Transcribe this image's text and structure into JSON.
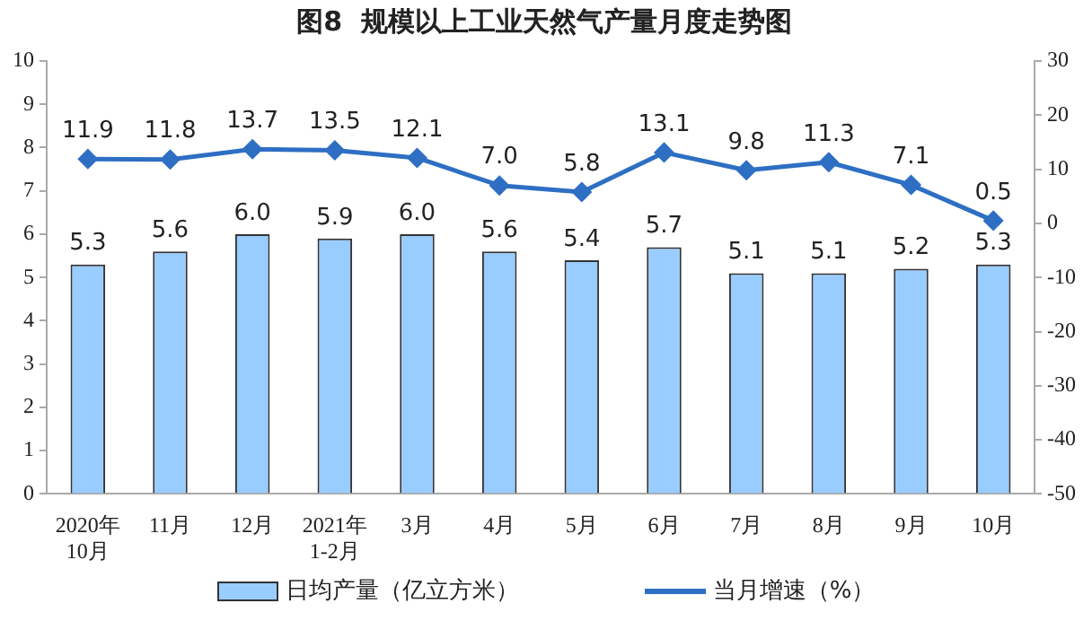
{
  "chart_data": {
    "type": "bar",
    "title": "图8  规模以上工业天然气产量月度走势图",
    "categories": [
      "2020年\n10月",
      "11月",
      "12月",
      "2021年\n1-2月",
      "3月",
      "4月",
      "5月",
      "6月",
      "7月",
      "8月",
      "9月",
      "10月"
    ],
    "series": [
      {
        "name": "日均产量（亿立方米）",
        "color": "#99ccff",
        "values": [
          5.3,
          5.6,
          6.0,
          5.9,
          6.0,
          5.6,
          5.4,
          5.7,
          5.1,
          5.1,
          5.2,
          5.3
        ],
        "value_labels": [
          "5.3",
          "5.6",
          "6.0",
          "5.9",
          "6.0",
          "5.6",
          "5.4",
          "5.7",
          "5.1",
          "5.1",
          "5.2",
          "5.3"
        ]
      },
      {
        "name": "当月增速（%）",
        "type": "line",
        "axis": "y2",
        "color": "#2e6fc4",
        "marker": "diamond",
        "values": [
          11.9,
          11.8,
          13.7,
          13.5,
          12.1,
          7.0,
          5.8,
          13.1,
          9.8,
          11.3,
          7.1,
          0.5
        ],
        "value_labels": [
          "11.9",
          "11.8",
          "13.7",
          "13.5",
          "12.1",
          "7.0",
          "5.8",
          "13.1",
          "9.8",
          "11.3",
          "7.1",
          "0.5"
        ]
      }
    ],
    "ylim": [
      0,
      10
    ],
    "yticks": [
      0,
      1,
      2,
      3,
      4,
      5,
      6,
      7,
      8,
      9,
      10
    ],
    "y2lim": [
      -50,
      30
    ],
    "y2ticks": [
      -50,
      -40,
      -30,
      -20,
      -10,
      0,
      10,
      20,
      30
    ],
    "grid": false,
    "legend": "bottom"
  }
}
